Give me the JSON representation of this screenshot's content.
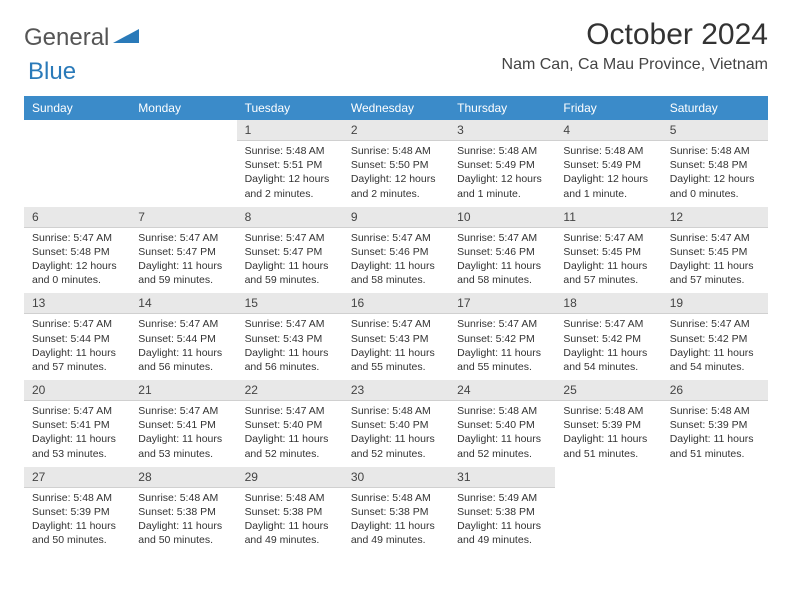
{
  "logo": {
    "text1": "General",
    "text2": "Blue"
  },
  "title": "October 2024",
  "location": "Nam Can, Ca Mau Province, Vietnam",
  "colors": {
    "header_bg": "#3b8bc9",
    "header_text": "#ffffff",
    "daynum_bg": "#e8e8e8",
    "body_text": "#333333",
    "logo_blue": "#2a7ab9"
  },
  "weekdays": [
    "Sunday",
    "Monday",
    "Tuesday",
    "Wednesday",
    "Thursday",
    "Friday",
    "Saturday"
  ],
  "weeks": [
    [
      {
        "n": "",
        "sr": "",
        "ss": "",
        "dl": ""
      },
      {
        "n": "",
        "sr": "",
        "ss": "",
        "dl": ""
      },
      {
        "n": "1",
        "sr": "Sunrise: 5:48 AM",
        "ss": "Sunset: 5:51 PM",
        "dl": "Daylight: 12 hours and 2 minutes."
      },
      {
        "n": "2",
        "sr": "Sunrise: 5:48 AM",
        "ss": "Sunset: 5:50 PM",
        "dl": "Daylight: 12 hours and 2 minutes."
      },
      {
        "n": "3",
        "sr": "Sunrise: 5:48 AM",
        "ss": "Sunset: 5:49 PM",
        "dl": "Daylight: 12 hours and 1 minute."
      },
      {
        "n": "4",
        "sr": "Sunrise: 5:48 AM",
        "ss": "Sunset: 5:49 PM",
        "dl": "Daylight: 12 hours and 1 minute."
      },
      {
        "n": "5",
        "sr": "Sunrise: 5:48 AM",
        "ss": "Sunset: 5:48 PM",
        "dl": "Daylight: 12 hours and 0 minutes."
      }
    ],
    [
      {
        "n": "6",
        "sr": "Sunrise: 5:47 AM",
        "ss": "Sunset: 5:48 PM",
        "dl": "Daylight: 12 hours and 0 minutes."
      },
      {
        "n": "7",
        "sr": "Sunrise: 5:47 AM",
        "ss": "Sunset: 5:47 PM",
        "dl": "Daylight: 11 hours and 59 minutes."
      },
      {
        "n": "8",
        "sr": "Sunrise: 5:47 AM",
        "ss": "Sunset: 5:47 PM",
        "dl": "Daylight: 11 hours and 59 minutes."
      },
      {
        "n": "9",
        "sr": "Sunrise: 5:47 AM",
        "ss": "Sunset: 5:46 PM",
        "dl": "Daylight: 11 hours and 58 minutes."
      },
      {
        "n": "10",
        "sr": "Sunrise: 5:47 AM",
        "ss": "Sunset: 5:46 PM",
        "dl": "Daylight: 11 hours and 58 minutes."
      },
      {
        "n": "11",
        "sr": "Sunrise: 5:47 AM",
        "ss": "Sunset: 5:45 PM",
        "dl": "Daylight: 11 hours and 57 minutes."
      },
      {
        "n": "12",
        "sr": "Sunrise: 5:47 AM",
        "ss": "Sunset: 5:45 PM",
        "dl": "Daylight: 11 hours and 57 minutes."
      }
    ],
    [
      {
        "n": "13",
        "sr": "Sunrise: 5:47 AM",
        "ss": "Sunset: 5:44 PM",
        "dl": "Daylight: 11 hours and 57 minutes."
      },
      {
        "n": "14",
        "sr": "Sunrise: 5:47 AM",
        "ss": "Sunset: 5:44 PM",
        "dl": "Daylight: 11 hours and 56 minutes."
      },
      {
        "n": "15",
        "sr": "Sunrise: 5:47 AM",
        "ss": "Sunset: 5:43 PM",
        "dl": "Daylight: 11 hours and 56 minutes."
      },
      {
        "n": "16",
        "sr": "Sunrise: 5:47 AM",
        "ss": "Sunset: 5:43 PM",
        "dl": "Daylight: 11 hours and 55 minutes."
      },
      {
        "n": "17",
        "sr": "Sunrise: 5:47 AM",
        "ss": "Sunset: 5:42 PM",
        "dl": "Daylight: 11 hours and 55 minutes."
      },
      {
        "n": "18",
        "sr": "Sunrise: 5:47 AM",
        "ss": "Sunset: 5:42 PM",
        "dl": "Daylight: 11 hours and 54 minutes."
      },
      {
        "n": "19",
        "sr": "Sunrise: 5:47 AM",
        "ss": "Sunset: 5:42 PM",
        "dl": "Daylight: 11 hours and 54 minutes."
      }
    ],
    [
      {
        "n": "20",
        "sr": "Sunrise: 5:47 AM",
        "ss": "Sunset: 5:41 PM",
        "dl": "Daylight: 11 hours and 53 minutes."
      },
      {
        "n": "21",
        "sr": "Sunrise: 5:47 AM",
        "ss": "Sunset: 5:41 PM",
        "dl": "Daylight: 11 hours and 53 minutes."
      },
      {
        "n": "22",
        "sr": "Sunrise: 5:47 AM",
        "ss": "Sunset: 5:40 PM",
        "dl": "Daylight: 11 hours and 52 minutes."
      },
      {
        "n": "23",
        "sr": "Sunrise: 5:48 AM",
        "ss": "Sunset: 5:40 PM",
        "dl": "Daylight: 11 hours and 52 minutes."
      },
      {
        "n": "24",
        "sr": "Sunrise: 5:48 AM",
        "ss": "Sunset: 5:40 PM",
        "dl": "Daylight: 11 hours and 52 minutes."
      },
      {
        "n": "25",
        "sr": "Sunrise: 5:48 AM",
        "ss": "Sunset: 5:39 PM",
        "dl": "Daylight: 11 hours and 51 minutes."
      },
      {
        "n": "26",
        "sr": "Sunrise: 5:48 AM",
        "ss": "Sunset: 5:39 PM",
        "dl": "Daylight: 11 hours and 51 minutes."
      }
    ],
    [
      {
        "n": "27",
        "sr": "Sunrise: 5:48 AM",
        "ss": "Sunset: 5:39 PM",
        "dl": "Daylight: 11 hours and 50 minutes."
      },
      {
        "n": "28",
        "sr": "Sunrise: 5:48 AM",
        "ss": "Sunset: 5:38 PM",
        "dl": "Daylight: 11 hours and 50 minutes."
      },
      {
        "n": "29",
        "sr": "Sunrise: 5:48 AM",
        "ss": "Sunset: 5:38 PM",
        "dl": "Daylight: 11 hours and 49 minutes."
      },
      {
        "n": "30",
        "sr": "Sunrise: 5:48 AM",
        "ss": "Sunset: 5:38 PM",
        "dl": "Daylight: 11 hours and 49 minutes."
      },
      {
        "n": "31",
        "sr": "Sunrise: 5:49 AM",
        "ss": "Sunset: 5:38 PM",
        "dl": "Daylight: 11 hours and 49 minutes."
      },
      {
        "n": "",
        "sr": "",
        "ss": "",
        "dl": ""
      },
      {
        "n": "",
        "sr": "",
        "ss": "",
        "dl": ""
      }
    ]
  ]
}
